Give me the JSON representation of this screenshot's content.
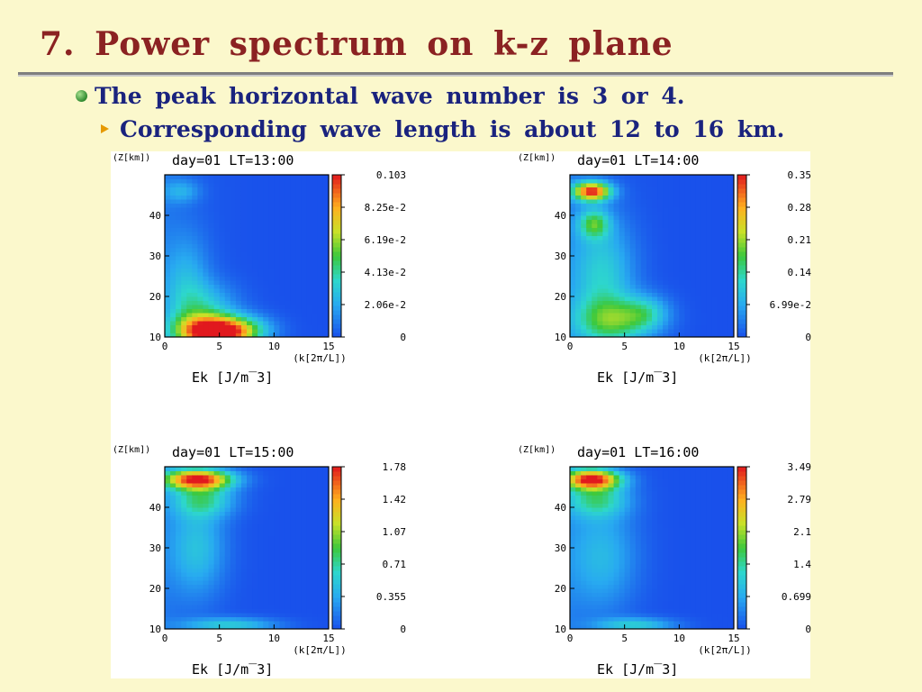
{
  "slide": {
    "title": "7.  Power  spectrum  on  k-z  plane",
    "bullet_main": "The  peak  horizontal  wave  number  is  3  or  4.",
    "bullet_sub": "Corresponding  wave  length  is  about  12  to  16  km."
  },
  "colors": {
    "title": "#8b2222",
    "text": "#1a237e",
    "background": "#fbf8cc",
    "bullet_dot": "#2f8a2f",
    "bullet_arrow": "#e69a00"
  },
  "chart_data": [
    {
      "type": "heatmap",
      "title": "day=01  LT=13:00",
      "ylabel": "(Z[km])",
      "xlabel": "(k[2π/L])",
      "caption": "Ek  [J/m^3]",
      "xlim": [
        0,
        15
      ],
      "ylim": [
        10,
        50
      ],
      "xticks": [
        "0",
        "5",
        "10",
        "15"
      ],
      "yticks": [
        "10",
        "20",
        "30",
        "40"
      ],
      "colorbar_labels": [
        "0.103",
        "8.25e-2",
        "6.19e-2",
        "4.13e-2",
        "2.06e-2",
        "0"
      ],
      "colorbar_max": 0.103,
      "features": [
        {
          "k": 5,
          "z": 11,
          "level": 0.75,
          "sk": 2.2,
          "sz": 2.5
        },
        {
          "k": 3.5,
          "z": 12,
          "level": 0.45,
          "sk": 2.0,
          "sz": 3.0
        },
        {
          "k": 7,
          "z": 12,
          "level": 0.3,
          "sk": 2.0,
          "sz": 2.5
        },
        {
          "k": 2,
          "z": 22,
          "level": 0.22,
          "sk": 1.5,
          "sz": 9
        },
        {
          "k": 4,
          "z": 18,
          "level": 0.2,
          "sk": 2.0,
          "sz": 4
        },
        {
          "k": 1.5,
          "z": 46,
          "level": 0.18,
          "sk": 1.2,
          "sz": 2
        }
      ]
    },
    {
      "type": "heatmap",
      "title": "day=01  LT=14:00",
      "ylabel": "(Z[km])",
      "xlabel": "(k[2π/L])",
      "caption": "Ek  [J/m^3]",
      "xlim": [
        0,
        15
      ],
      "ylim": [
        10,
        50
      ],
      "xticks": [
        "0",
        "5",
        "10",
        "15"
      ],
      "yticks": [
        "10",
        "20",
        "30",
        "40"
      ],
      "colorbar_labels": [
        "0.35",
        "0.28",
        "0.21",
        "0.14",
        "6.99e-2",
        "0"
      ],
      "colorbar_max": 0.35,
      "features": [
        {
          "k": 2,
          "z": 46,
          "level": 0.95,
          "sk": 1.2,
          "sz": 1.6
        },
        {
          "k": 2.2,
          "z": 38,
          "level": 0.4,
          "sk": 1.0,
          "sz": 2.5
        },
        {
          "k": 3,
          "z": 25,
          "level": 0.3,
          "sk": 2.0,
          "sz": 10
        },
        {
          "k": 4,
          "z": 14,
          "level": 0.4,
          "sk": 2.5,
          "sz": 4
        },
        {
          "k": 7,
          "z": 16,
          "level": 0.25,
          "sk": 1.5,
          "sz": 3
        }
      ]
    },
    {
      "type": "heatmap",
      "title": "day=01  LT=15:00",
      "ylabel": "(Z[km])",
      "xlabel": "(k[2π/L])",
      "caption": "Ek  [J/m^3]",
      "xlim": [
        0,
        15
      ],
      "ylim": [
        10,
        50
      ],
      "xticks": [
        "0",
        "5",
        "10",
        "15"
      ],
      "yticks": [
        "10",
        "20",
        "30",
        "40"
      ],
      "colorbar_labels": [
        "1.78",
        "1.42",
        "1.07",
        "0.71",
        "0.355",
        "0"
      ],
      "colorbar_max": 1.78,
      "features": [
        {
          "k": 3,
          "z": 47,
          "level": 0.95,
          "sk": 2.2,
          "sz": 1.7
        },
        {
          "k": 3.5,
          "z": 42,
          "level": 0.35,
          "sk": 2.0,
          "sz": 3
        },
        {
          "k": 3,
          "z": 30,
          "level": 0.25,
          "sk": 1.8,
          "sz": 8
        },
        {
          "k": 6,
          "z": 11,
          "level": 0.3,
          "sk": 3.0,
          "sz": 1.3
        }
      ]
    },
    {
      "type": "heatmap",
      "title": "day=01  LT=16:00",
      "ylabel": "(Z[km])",
      "xlabel": "(k[2π/L])",
      "caption": "Ek  [J/m^3]",
      "xlim": [
        0,
        15
      ],
      "ylim": [
        10,
        50
      ],
      "xticks": [
        "0",
        "5",
        "10",
        "15"
      ],
      "yticks": [
        "10",
        "20",
        "30",
        "40"
      ],
      "colorbar_labels": [
        "3.49",
        "2.79",
        "2.1",
        "1.4",
        "0.699",
        "0"
      ],
      "colorbar_max": 3.49,
      "features": [
        {
          "k": 2,
          "z": 47,
          "level": 0.95,
          "sk": 1.8,
          "sz": 1.7
        },
        {
          "k": 2.5,
          "z": 42,
          "level": 0.35,
          "sk": 2.0,
          "sz": 3
        },
        {
          "k": 3,
          "z": 28,
          "level": 0.22,
          "sk": 2.2,
          "sz": 9
        },
        {
          "k": 6,
          "z": 11,
          "level": 0.3,
          "sk": 2.5,
          "sz": 1.3
        }
      ]
    }
  ]
}
